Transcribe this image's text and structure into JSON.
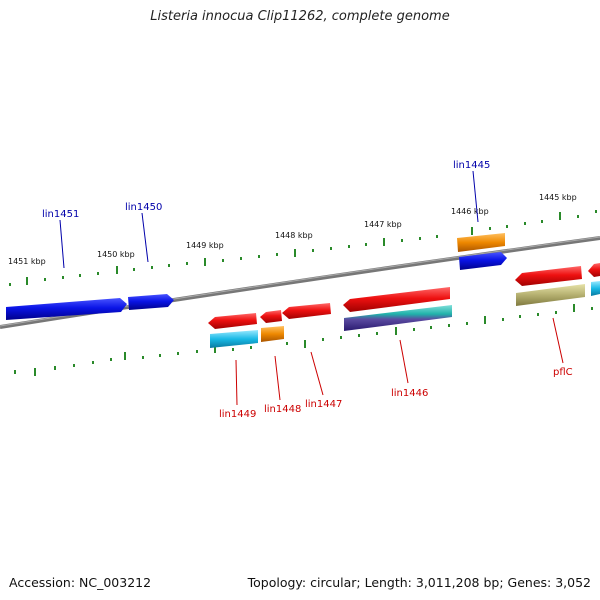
{
  "title": "Listeria innocua Clip11262, complete genome",
  "accession": "Accession: NC_003212",
  "summary": "Topology: circular; Length: 3,011,208 bp; Genes: 3,052",
  "ruler_labels": [
    "1451 kbp",
    "1450 kbp",
    "1449 kbp",
    "1448 kbp",
    "1447 kbp",
    "1446 kbp",
    "1445 kbp"
  ],
  "gene_labels": {
    "lin1451": "lin1451",
    "lin1450": "lin1450",
    "lin1445": "lin1445",
    "lin1449": "lin1449",
    "lin1448": "lin1448",
    "lin1447": "lin1447",
    "lin1446": "lin1446",
    "pflC": "pflC"
  },
  "colors": {
    "blue_gene": "#0a14e6",
    "red_gene": "#ee1111",
    "orange_gene": "#ee8800",
    "cyan_gene": "#19b9e6",
    "teal_gene": "#20b2aa",
    "olive_gene": "#b5b070",
    "backbone": "#888888",
    "tick": "#2a8a2a"
  }
}
